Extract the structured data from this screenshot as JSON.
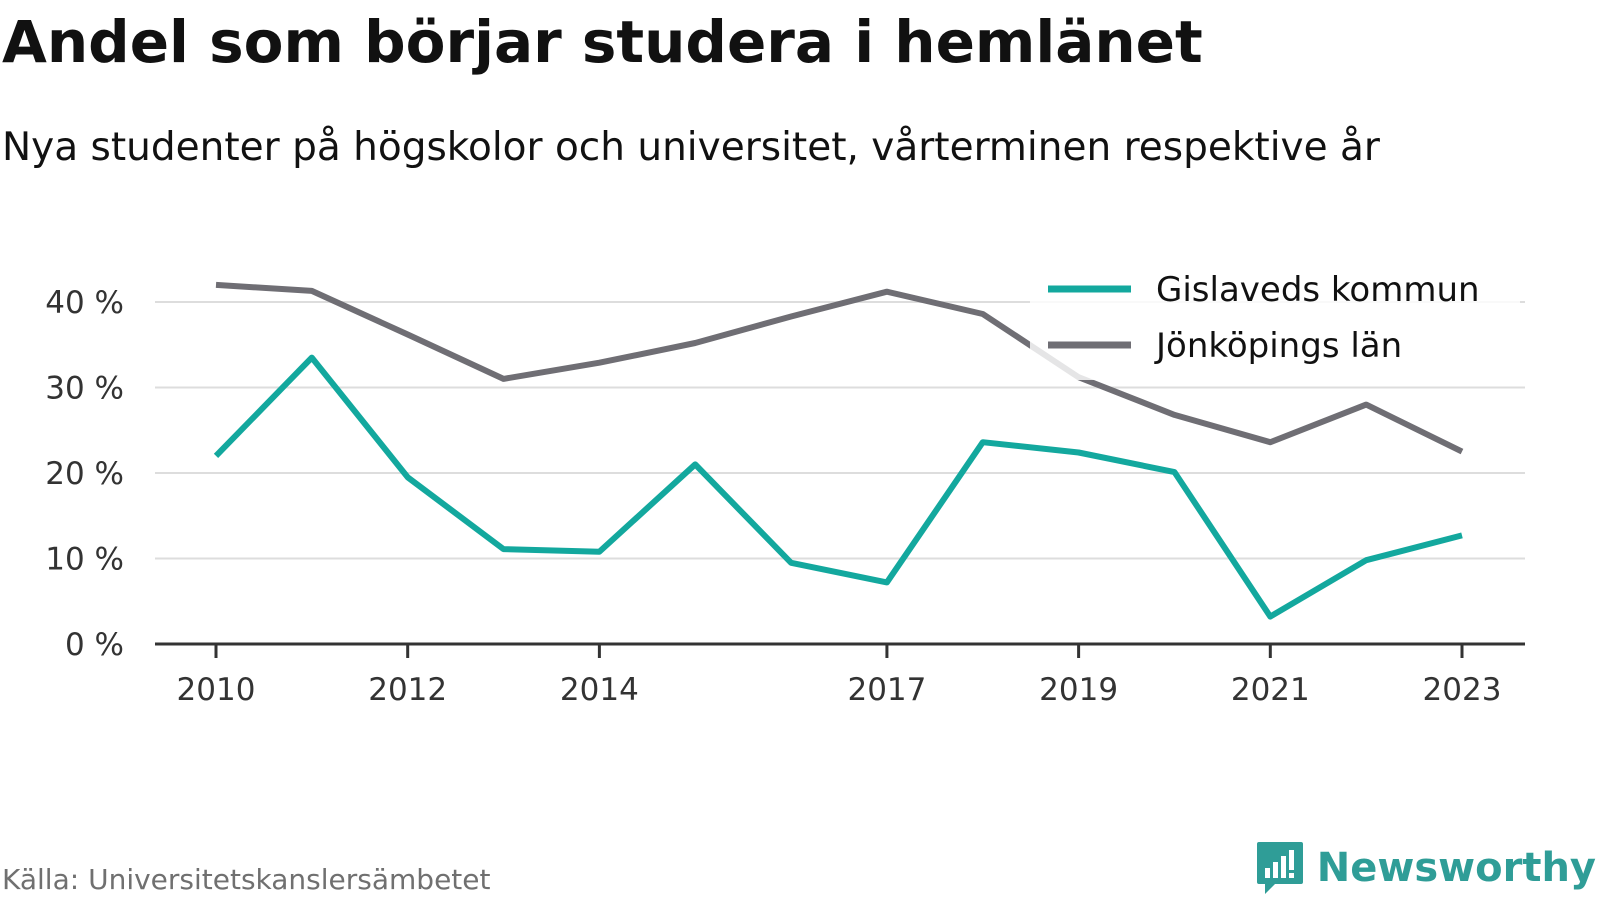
{
  "title": "Andel som börjar studera i hemlänet",
  "subtitle": "Nya studenter på högskolor och universitet, vårterminen respektive år",
  "source": "Källa: Universitetskanslersämbetet",
  "brand": {
    "name": "Newsworthy",
    "icon": "newsworthy-logo-icon",
    "color": "#2f9d97"
  },
  "chart_data": {
    "type": "line",
    "x": [
      2010,
      2011,
      2012,
      2013,
      2014,
      2015,
      2016,
      2017,
      2018,
      2019,
      2020,
      2021,
      2022,
      2023
    ],
    "x_ticks": [
      "2010",
      "2012",
      "2014",
      "2017",
      "2019",
      "2021",
      "2023"
    ],
    "y_ticks": [
      "0 %",
      "10 %",
      "20 %",
      "30 %",
      "40 %"
    ],
    "ylim": [
      0,
      40
    ],
    "grid": true,
    "legend_position": "top-right",
    "series": [
      {
        "name": "Gislaveds kommun",
        "color": "#13a89e",
        "values": [
          22.0,
          33.5,
          19.5,
          11.1,
          10.8,
          21.0,
          9.5,
          7.2,
          23.6,
          22.4,
          20.1,
          3.2,
          9.8,
          12.7
        ]
      },
      {
        "name": "Jönköpings län",
        "color": "#6f6e74",
        "values": [
          42.0,
          41.3,
          36.2,
          31.0,
          32.9,
          35.2,
          38.3,
          41.2,
          38.6,
          31.2,
          26.8,
          23.6,
          28.0,
          22.5
        ]
      }
    ]
  }
}
